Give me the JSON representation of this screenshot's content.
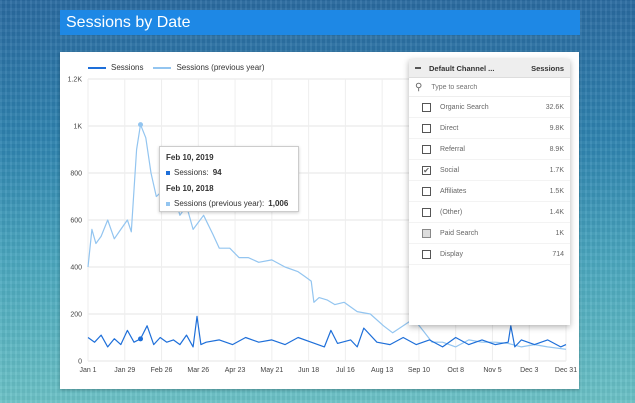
{
  "page": {
    "title": "Sessions by Date"
  },
  "legend": {
    "series": [
      {
        "label": "Sessions",
        "color": "#1e6fd9"
      },
      {
        "label": "Sessions (previous year)",
        "color": "#93c5f0"
      }
    ]
  },
  "tooltip": {
    "date1": "Feb 10, 2019",
    "s1_label": "Sessions: ",
    "s1_value": "94",
    "date2": "Feb 10, 2018",
    "s2_label": "Sessions (previous year): ",
    "s2_value": "1,006"
  },
  "filter_panel": {
    "dimension_label": "Default Channel ...",
    "metric_label": "Sessions",
    "search_placeholder": "Type to search",
    "items": [
      {
        "name": "Organic Search",
        "value": "32.6K",
        "checked": false,
        "hover": false
      },
      {
        "name": "Direct",
        "value": "9.8K",
        "checked": false,
        "hover": false
      },
      {
        "name": "Referral",
        "value": "8.9K",
        "checked": false,
        "hover": false
      },
      {
        "name": "Social",
        "value": "1.7K",
        "checked": true,
        "hover": false
      },
      {
        "name": "Affiliates",
        "value": "1.5K",
        "checked": false,
        "hover": false
      },
      {
        "name": "(Other)",
        "value": "1.4K",
        "checked": false,
        "hover": false
      },
      {
        "name": "Paid Search",
        "value": "1K",
        "checked": false,
        "hover": true
      },
      {
        "name": "Display",
        "value": "714",
        "checked": false,
        "hover": false
      }
    ]
  },
  "chart_data": {
    "type": "line",
    "title": "",
    "xlabel": "",
    "ylabel": "",
    "ylim": [
      0,
      1200
    ],
    "yticks": [
      "0",
      "200",
      "400",
      "600",
      "800",
      "1K",
      "1.2K"
    ],
    "ytick_values": [
      0,
      200,
      400,
      600,
      800,
      1000,
      1200
    ],
    "xticks": [
      "Jan 1",
      "Jan 29",
      "Feb 26",
      "Mar 26",
      "Apr 23",
      "May 21",
      "Jun 18",
      "Jul 16",
      "Aug 13",
      "Sep 10",
      "Oct 8",
      "Nov 5",
      "Dec 3",
      "Dec 31"
    ],
    "x_domain_days": [
      0,
      364
    ],
    "grid": true,
    "legend_position": "top-left",
    "highlight_day": 40,
    "series": [
      {
        "name": "Sessions",
        "color": "#1e6fd9",
        "points": [
          [
            0,
            100
          ],
          [
            5,
            80
          ],
          [
            10,
            110
          ],
          [
            15,
            60
          ],
          [
            20,
            95
          ],
          [
            25,
            70
          ],
          [
            30,
            130
          ],
          [
            35,
            80
          ],
          [
            40,
            94
          ],
          [
            45,
            150
          ],
          [
            50,
            70
          ],
          [
            55,
            100
          ],
          [
            60,
            80
          ],
          [
            65,
            90
          ],
          [
            70,
            70
          ],
          [
            75,
            110
          ],
          [
            80,
            60
          ],
          [
            83,
            190
          ],
          [
            86,
            70
          ],
          [
            90,
            80
          ],
          [
            100,
            90
          ],
          [
            110,
            70
          ],
          [
            120,
            100
          ],
          [
            130,
            80
          ],
          [
            140,
            90
          ],
          [
            150,
            70
          ],
          [
            160,
            100
          ],
          [
            170,
            80
          ],
          [
            180,
            60
          ],
          [
            185,
            130
          ],
          [
            190,
            75
          ],
          [
            200,
            90
          ],
          [
            205,
            60
          ],
          [
            210,
            140
          ],
          [
            220,
            80
          ],
          [
            230,
            70
          ],
          [
            240,
            100
          ],
          [
            250,
            70
          ],
          [
            260,
            90
          ],
          [
            270,
            60
          ],
          [
            280,
            100
          ],
          [
            290,
            70
          ],
          [
            300,
            90
          ],
          [
            310,
            70
          ],
          [
            320,
            80
          ],
          [
            322,
            150
          ],
          [
            325,
            60
          ],
          [
            330,
            90
          ],
          [
            340,
            70
          ],
          [
            350,
            90
          ],
          [
            360,
            60
          ],
          [
            364,
            70
          ]
        ]
      },
      {
        "name": "Sessions (previous year)",
        "color": "#93c5f0",
        "points": [
          [
            0,
            400
          ],
          [
            3,
            560
          ],
          [
            6,
            500
          ],
          [
            10,
            530
          ],
          [
            15,
            600
          ],
          [
            20,
            520
          ],
          [
            25,
            560
          ],
          [
            30,
            600
          ],
          [
            33,
            550
          ],
          [
            37,
            900
          ],
          [
            40,
            1006
          ],
          [
            44,
            950
          ],
          [
            48,
            800
          ],
          [
            52,
            700
          ],
          [
            56,
            720
          ],
          [
            60,
            660
          ],
          [
            66,
            700
          ],
          [
            70,
            620
          ],
          [
            75,
            660
          ],
          [
            80,
            560
          ],
          [
            88,
            620
          ],
          [
            95,
            540
          ],
          [
            100,
            480
          ],
          [
            108,
            480
          ],
          [
            115,
            440
          ],
          [
            122,
            440
          ],
          [
            130,
            420
          ],
          [
            140,
            430
          ],
          [
            150,
            400
          ],
          [
            160,
            380
          ],
          [
            165,
            360
          ],
          [
            170,
            340
          ],
          [
            172,
            250
          ],
          [
            176,
            270
          ],
          [
            182,
            260
          ],
          [
            188,
            240
          ],
          [
            195,
            250
          ],
          [
            205,
            210
          ],
          [
            215,
            200
          ],
          [
            225,
            150
          ],
          [
            232,
            120
          ],
          [
            240,
            150
          ],
          [
            248,
            180
          ],
          [
            255,
            130
          ],
          [
            262,
            80
          ],
          [
            270,
            80
          ],
          [
            280,
            60
          ],
          [
            290,
            90
          ],
          [
            300,
            80
          ],
          [
            310,
            80
          ],
          [
            320,
            75
          ],
          [
            330,
            60
          ],
          [
            340,
            70
          ],
          [
            350,
            60
          ],
          [
            364,
            50
          ]
        ]
      }
    ]
  }
}
